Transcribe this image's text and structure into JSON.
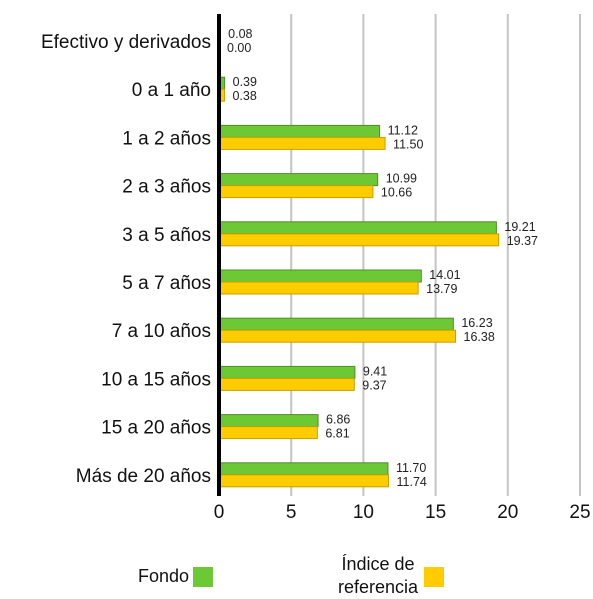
{
  "chart_data": {
    "type": "bar",
    "orientation": "horizontal",
    "categories": [
      "Efectivo y derivados",
      "0 a 1 año",
      "1 a 2 años",
      "2 a 3 años",
      "3 a 5 años",
      "5 a 7 años",
      "7 a 10 años",
      "10 a 15 años",
      "15 a 20 años",
      "Más de 20 años"
    ],
    "series": [
      {
        "name": "Fondo",
        "color": "#6dc835",
        "values": [
          0.08,
          0.39,
          11.12,
          10.99,
          19.21,
          14.01,
          16.23,
          9.41,
          6.86,
          11.7
        ]
      },
      {
        "name": "Índice de referencia",
        "color": "#ffcc00",
        "values": [
          0.0,
          0.38,
          11.5,
          10.66,
          19.37,
          13.79,
          16.38,
          9.37,
          6.81,
          11.74
        ]
      }
    ],
    "data_labels": [
      [
        "0.08",
        "0.39",
        "11.12",
        "10.99",
        "19.21",
        "14.01",
        "16.23",
        "9.41",
        "6.86",
        "11.70"
      ],
      [
        "0.00",
        "0.38",
        "11.50",
        "10.66",
        "19.37",
        "13.79",
        "16.38",
        "9.37",
        "6.81",
        "11.74"
      ]
    ],
    "xticks": [
      "0",
      "5",
      "10",
      "15",
      "20",
      "25"
    ],
    "xlim": [
      0,
      25
    ],
    "grid": "vertical",
    "legend_position": "bottom"
  },
  "legend": {
    "fondo_label": "Fondo",
    "indice_line1": "Índice de",
    "indice_line2": "referencia"
  }
}
